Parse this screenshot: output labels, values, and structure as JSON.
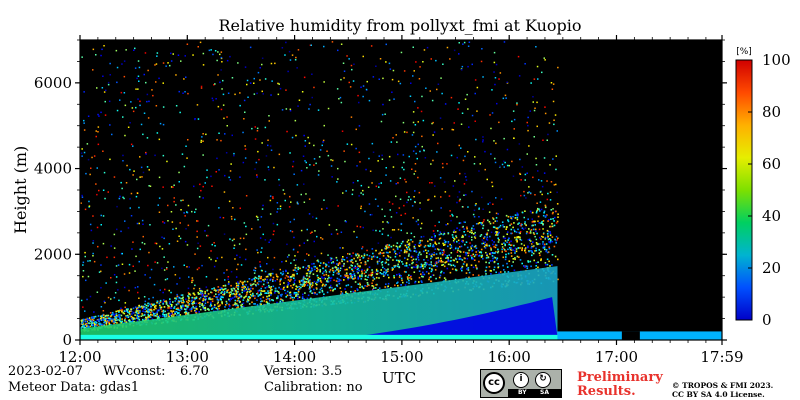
{
  "chart_data": {
    "type": "heatmap",
    "title": "Relative humidity from pollyxt_fmi at Kuopio",
    "xlabel": "UTC",
    "ylabel": "Height (m)",
    "x_ticks": [
      "12:00",
      "13:00",
      "14:00",
      "15:00",
      "16:00",
      "17:00",
      "17:59"
    ],
    "x_range_hours": [
      12.0,
      17.9833
    ],
    "y_ticks": [
      0,
      2000,
      4000,
      6000
    ],
    "ylim": [
      0,
      7000
    ],
    "colorbar": {
      "unit_label": "[%]",
      "ticks": [
        0,
        20,
        40,
        60,
        80,
        100
      ],
      "range": [
        0,
        100
      ],
      "colormap": "jet"
    },
    "background_color": "#000000",
    "regions": [
      {
        "from_hour": 12.0,
        "to_hour": 16.45,
        "rh_near_surface": 40,
        "rh_low_layer": 10,
        "layer_top_m_start": 350,
        "layer_top_m_end": 2300,
        "rh_aloft_noisy": 45
      },
      {
        "from_hour": 16.45,
        "to_hour": 17.9833,
        "rh_near_surface": 30,
        "layer_top_m_end": 200,
        "note": "no signal above ~200 m"
      }
    ],
    "grid": false
  },
  "footer": {
    "date": "2023-02-07",
    "wvconst_label": "WVconst:",
    "wvconst_value": "6.70",
    "meteor_data": "Meteor Data: gdas1",
    "version": "Version: 3.5",
    "calibration": "Calibration: no",
    "preliminary_line1": "Preliminary",
    "preliminary_line2": "Results.",
    "copyright_line1": "© TROPOS & FMI 2023.",
    "copyright_line2": "CC BY SA 4.0 License.",
    "cc_logo_text": "cc",
    "cc_by_text": "BY",
    "cc_sa_text": "SA"
  },
  "colors": {
    "preliminary_text": "#e8322c",
    "plot_background": "#000000"
  }
}
